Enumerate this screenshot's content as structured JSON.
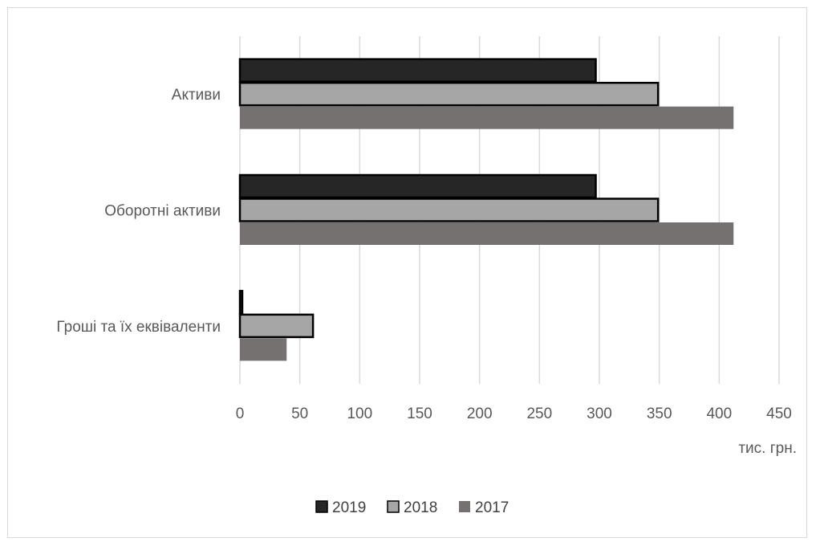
{
  "chart_data": {
    "type": "bar",
    "orientation": "horizontal",
    "categories": [
      "Активи",
      "Оборотні активи",
      "Гроші та їх еквіваленти"
    ],
    "series": [
      {
        "name": "2019",
        "values": [
          297,
          297,
          2
        ],
        "color": "#262626",
        "outline": "#000000"
      },
      {
        "name": "2018",
        "values": [
          349,
          349,
          61
        ],
        "color": "#a6a6a6",
        "outline": "#000000"
      },
      {
        "name": "2017",
        "values": [
          412,
          412,
          39
        ],
        "color": "#767171",
        "outline": "none"
      }
    ],
    "x_ticks": [
      "0",
      "50",
      "100",
      "150",
      "200",
      "250",
      "300",
      "350",
      "400",
      "450"
    ],
    "xlim": [
      0,
      450
    ],
    "xlabel": "тис. грн.",
    "grid": "vertical",
    "legend_position": "bottom"
  }
}
